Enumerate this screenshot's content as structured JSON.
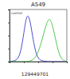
{
  "chart_data": {
    "type": "line",
    "title": "A549",
    "x": [
      0,
      5,
      10,
      15,
      20,
      25,
      30,
      35,
      40,
      45,
      50,
      55,
      60,
      65,
      70,
      75,
      80,
      85,
      90,
      95,
      100
    ],
    "series": [
      {
        "name": "control",
        "color": "#3a3ac8",
        "values": [
          0,
          1,
          2,
          6,
          20,
          55,
          92,
          85,
          50,
          20,
          6,
          2,
          1,
          0,
          0,
          0,
          0,
          0,
          0,
          0,
          0
        ]
      },
      {
        "color": "#3cbf3c",
        "values": [
          0,
          0,
          0,
          0,
          0,
          0,
          0,
          1,
          3,
          8,
          18,
          35,
          55,
          75,
          85,
          70,
          45,
          20,
          6,
          2,
          0
        ]
      }
    ],
    "xlim": [
      0,
      100
    ],
    "ylim": [
      0,
      100
    ],
    "xticks": [
      0,
      25,
      50,
      75,
      100
    ],
    "yticks": [
      0,
      25,
      50,
      75,
      100
    ],
    "tick_labels": false,
    "legend": "top-left",
    "annotations": [
      "129449701"
    ]
  }
}
